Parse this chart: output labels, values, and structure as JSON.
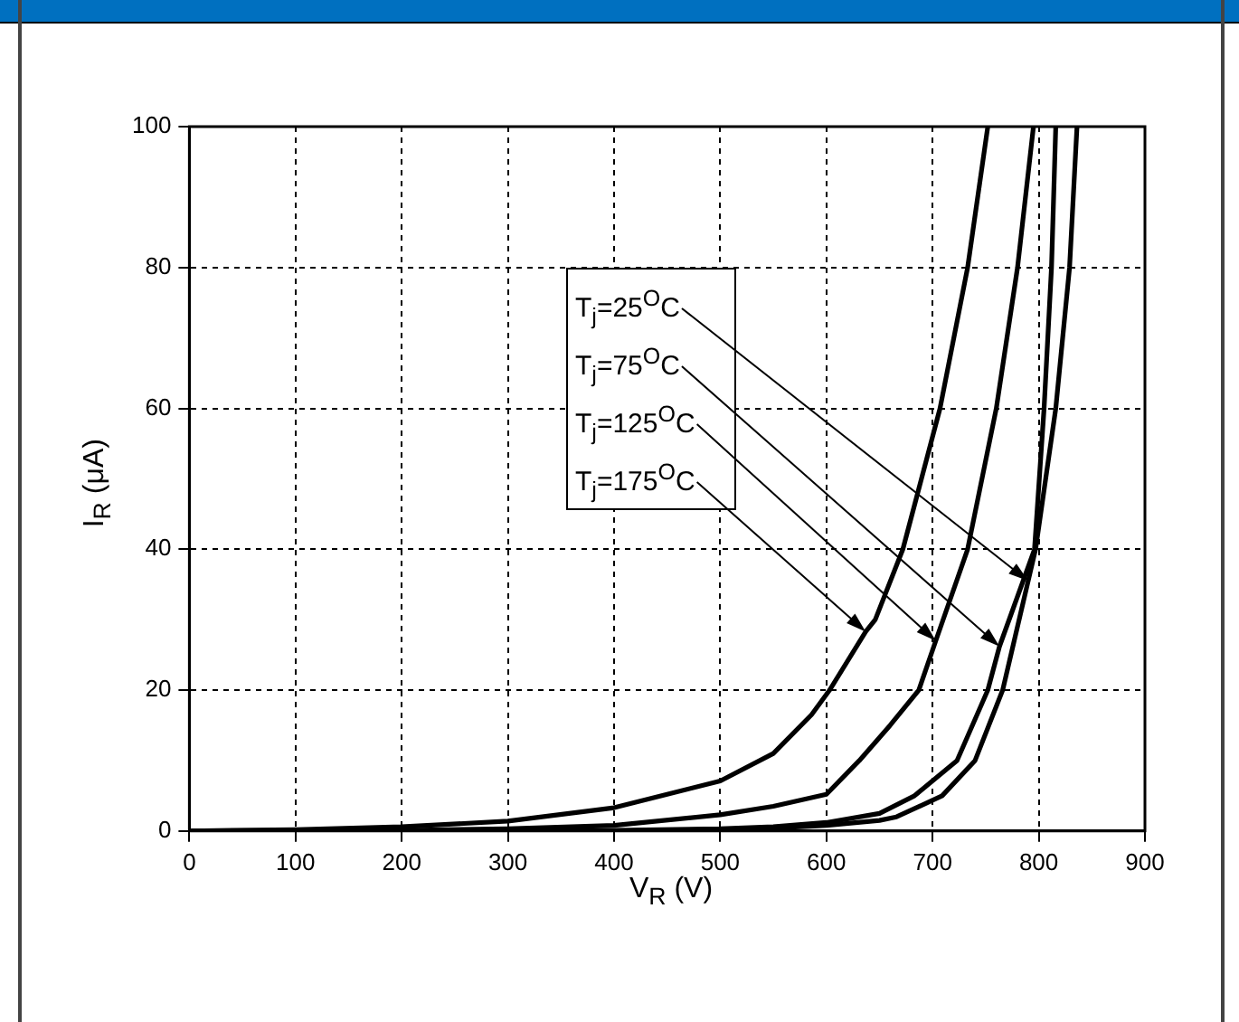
{
  "chart_data": {
    "type": "line",
    "xlabel": "V$_{R}$ (V)",
    "ylabel": "I$_{R}$ (μA)",
    "xlim": [
      0,
      900
    ],
    "xticks": [
      0,
      100,
      200,
      300,
      400,
      500,
      600,
      700,
      800,
      900
    ],
    "ylim": [
      0,
      100
    ],
    "yticks": [
      0,
      20,
      40,
      60,
      80,
      100
    ],
    "grid": true,
    "marker": "none",
    "line_style": "solid",
    "series": [
      {
        "color": "#000000",
        "x": [
          0,
          100,
          200,
          300,
          400,
          450,
          500,
          550,
          586,
          603,
          637,
          646,
          672,
          707,
          733,
          752
        ],
        "values": [
          0,
          0.2,
          0.6,
          1.4,
          3.3,
          5.2,
          7.1,
          11,
          16.5,
          20,
          28.3,
          30,
          40,
          60,
          80,
          100
        ]
      },
      {
        "color": "#000000",
        "x": [
          0,
          200,
          300,
          400,
          500,
          550,
          600,
          631,
          660,
          687,
          703,
          733,
          760,
          780,
          795
        ],
        "values": [
          0,
          0.1,
          0.3,
          0.8,
          2.3,
          3.5,
          5.2,
          10,
          15,
          20,
          27,
          40,
          60,
          80,
          100
        ]
      },
      {
        "color": "#000000",
        "x": [
          0,
          300,
          400,
          500,
          550,
          600,
          650,
          683,
          723,
          752,
          763,
          796,
          805,
          812,
          816
        ],
        "values": [
          0,
          0,
          0.1,
          0.3,
          0.6,
          1.2,
          2.5,
          5,
          10,
          20,
          26.2,
          40,
          60,
          80,
          100
        ]
      },
      {
        "color": "#000000",
        "x": [
          0,
          300,
          400,
          500,
          550,
          600,
          650,
          666,
          709,
          740,
          766,
          790,
          797,
          816,
          829,
          836
        ],
        "values": [
          0,
          0,
          0,
          0.2,
          0.4,
          0.8,
          1.5,
          2,
          5,
          10,
          20,
          35.5,
          40,
          60,
          80,
          100
        ]
      }
    ],
    "annotations": [
      {
        "text": "T$_{j}$=25$^{O}$C",
        "x": 790,
        "y": 35.5
      },
      {
        "text": "T$_{j}$=75$^{O}$C",
        "x": 763,
        "y": 26.2
      },
      {
        "text": "T$_{j}$=125$^{O}$C",
        "x": 703,
        "y": 27
      },
      {
        "text": "T$_{j}$=175$^{O}$C",
        "x": 637,
        "y": 28.3
      }
    ]
  }
}
